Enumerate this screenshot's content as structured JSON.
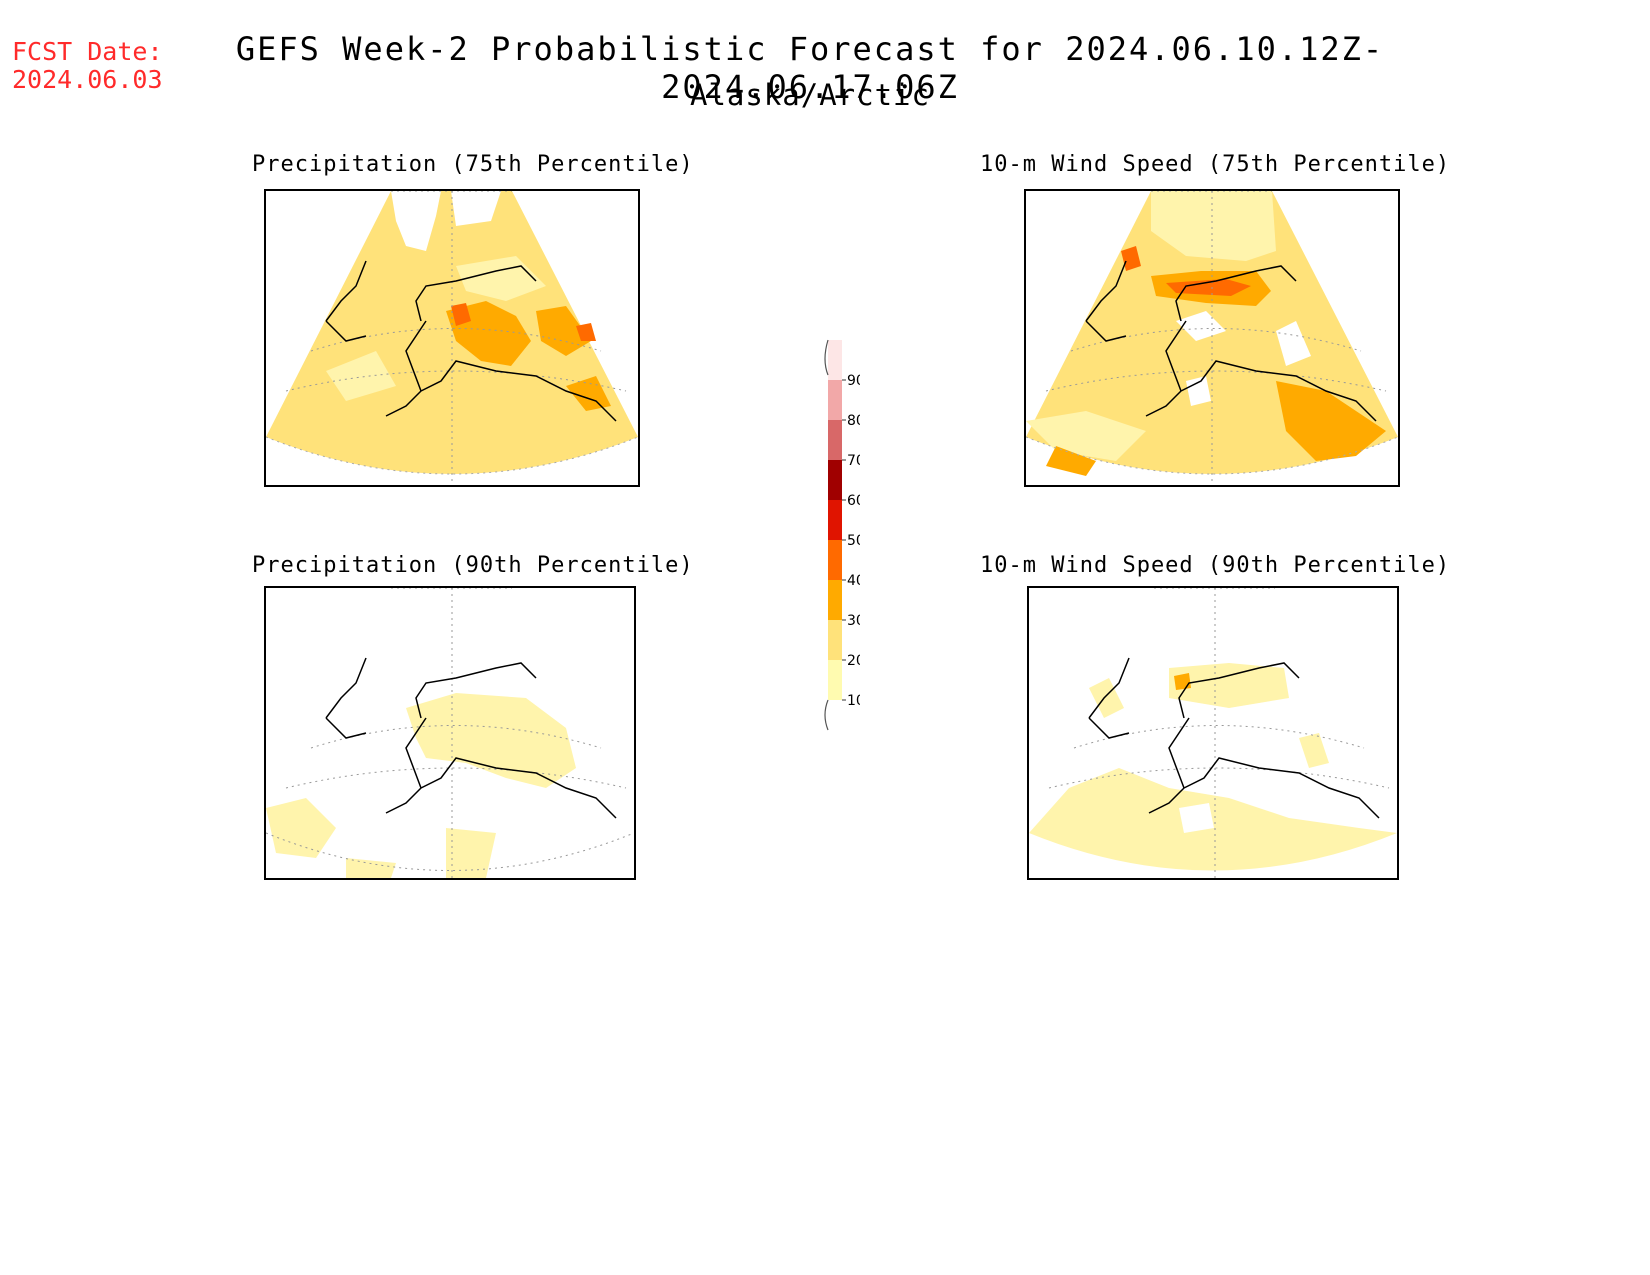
{
  "header": {
    "fcst_label": "FCST Date:",
    "fcst_date": "2024.06.03",
    "title": "GEFS Week-2 Probabilistic Forecast for 2024.06.10.12Z-2024.06.17.06Z",
    "subtitle": "Alaska/Arctic"
  },
  "panels": [
    {
      "id": "precip75",
      "title": "Precipitation (75th Percentile)"
    },
    {
      "id": "wind75",
      "title": "10-m Wind Speed (75th Percentile)"
    },
    {
      "id": "precip90",
      "title": "Precipitation (90th Percentile)"
    },
    {
      "id": "wind90",
      "title": "10-m Wind Speed (90th Percentile)"
    }
  ],
  "legend": {
    "levels": [
      "10",
      "20",
      "30",
      "40",
      "50",
      "60",
      "70",
      "80",
      "90"
    ],
    "colors": [
      "#fffbb0",
      "#ffe27a",
      "#ffaa00",
      "#ff6a00",
      "#e01400",
      "#a00000",
      "#d86868",
      "#f2a8a8",
      "#fde6e6"
    ]
  },
  "colors": {
    "fcst_date": "#ff2a2a",
    "level_10_20": "#fff4ac",
    "level_20_30": "#ffe27a",
    "level_30_40": "#ffaa00",
    "level_40_50": "#ff6a00"
  }
}
